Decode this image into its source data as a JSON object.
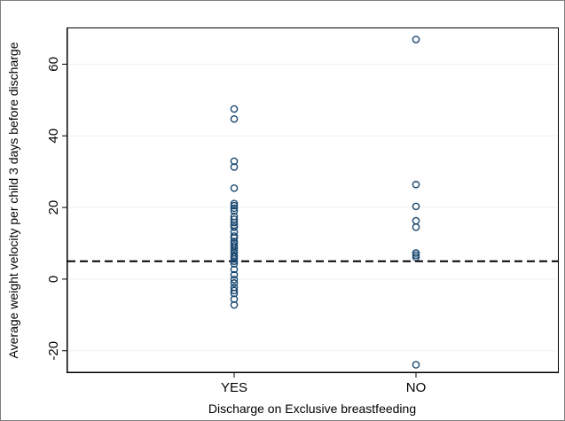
{
  "chart_data": {
    "type": "scatter",
    "xlabel": "Discharge on Exclusive breastfeeding",
    "ylabel": "Average weight velocity per child 3 days before discharge",
    "categories": [
      "YES",
      "NO"
    ],
    "ylim": [
      -26,
      70
    ],
    "yticks": [
      -20,
      0,
      20,
      40,
      60
    ],
    "grid": true,
    "reference_line": {
      "y": 5,
      "style": "dashed"
    },
    "colors": {
      "marker": "#1a476f",
      "grid": "#eaf2f3",
      "reference_line": "#000000"
    },
    "series": [
      {
        "category": "YES",
        "values": [
          47.5,
          44.7,
          32.9,
          31.3,
          25.4,
          21.1,
          20.5,
          19.8,
          19.0,
          17.5,
          16.7,
          15.8,
          15.1,
          14.5,
          13.2,
          12.0,
          11.5,
          10.5,
          9.9,
          9.3,
          8.7,
          8.0,
          7.4,
          6.6,
          6.2,
          5.6,
          5.0,
          4.3,
          2.7,
          1.2,
          -0.1,
          -1.1,
          -2.3,
          -3.2,
          -4.0,
          -5.6,
          -7.2
        ]
      },
      {
        "category": "NO",
        "values": [
          66.9,
          26.4,
          20.3,
          16.3,
          14.5,
          7.3,
          6.7,
          6.1,
          -23.9
        ]
      }
    ]
  }
}
